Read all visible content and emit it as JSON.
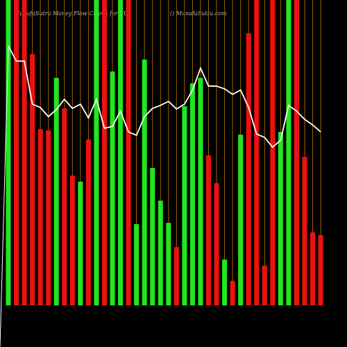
{
  "chart_data": {
    "type": "bar",
    "title": "MunafaSutra  Money Flow  Charts for EU",
    "subtitle": "() MunafaSutra.com",
    "categories": [
      null,
      null,
      null,
      null,
      null,
      null,
      null,
      null,
      null,
      null,
      null,
      null,
      null,
      null,
      null,
      null,
      null,
      null,
      null,
      null,
      null,
      null,
      null,
      null,
      null,
      null,
      null,
      null,
      null,
      null,
      null,
      null,
      null,
      null,
      null,
      null,
      null,
      null,
      null,
      null
    ],
    "values": [
      100,
      100,
      100,
      82.3,
      57.7,
      57.3,
      74.5,
      64.5,
      42.5,
      40.5,
      54.3,
      100,
      100,
      76.6,
      100,
      100,
      26.6,
      80.5,
      45,
      34.3,
      27,
      19.1,
      65.2,
      72.7,
      74.5,
      49.1,
      40,
      15,
      8,
      55.9,
      89.1,
      100,
      13,
      100,
      56.8,
      100,
      100,
      48.6,
      23.9,
      23
    ],
    "colors": [
      "#22e622",
      "#ee1111",
      "#ee1111",
      "#ee1111",
      "#ee1111",
      "#ee1111",
      "#22e622",
      "#ee1111",
      "#ee1111",
      "#22e622",
      "#ee1111",
      "#22e622",
      "#ee1111",
      "#22e622",
      "#22e622",
      "#ee1111",
      "#22e622",
      "#22e622",
      "#22e622",
      "#22e622",
      "#22e622",
      "#ee1111",
      "#22e622",
      "#22e622",
      "#22e622",
      "#ee1111",
      "#ee1111",
      "#22e622",
      "#ee1111",
      "#22e622",
      "#ee1111",
      "#ee1111",
      "#ee1111",
      "#ee1111",
      "#22e622",
      "#22e622",
      "#ee1111",
      "#ee1111",
      "#ee1111",
      "#ee1111"
    ],
    "line": {
      "color": "#ffffff",
      "values": [
        85,
        80,
        80,
        65.9,
        64.8,
        61.8,
        64.1,
        67.5,
        64.5,
        65.9,
        61.4,
        67.5,
        58,
        58.6,
        63.6,
        56.8,
        55.7,
        61.8,
        64.5,
        65.5,
        66.8,
        64.3,
        65.9,
        70.5,
        77.7,
        71.8,
        71.8,
        70.9,
        69.1,
        70.5,
        64.8,
        56.1,
        55,
        51.8,
        54.1,
        65.5,
        63.6,
        60.9,
        59.1,
        56.8
      ]
    },
    "ylim": [
      0,
      100
    ],
    "guide_color": "#a0620a"
  }
}
